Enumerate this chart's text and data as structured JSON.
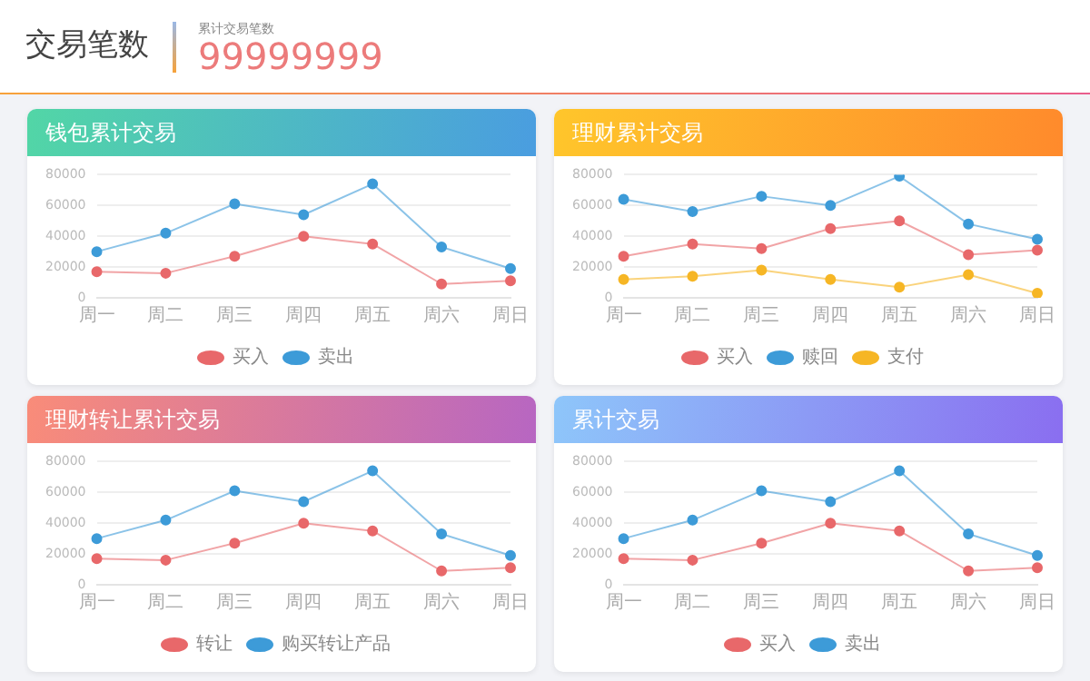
{
  "chart_data": [
    {
      "type": "other",
      "title": "交易笔数",
      "subtitle": "累计交易笔数",
      "annotations": [
        "99999999"
      ]
    },
    {
      "type": "line",
      "title": "钱包累计交易",
      "categories": [
        "周一",
        "周二",
        "周三",
        "周四",
        "周五",
        "周六",
        "周日"
      ],
      "ylim": [
        0,
        80000
      ],
      "yticks": [
        0,
        20000,
        40000,
        60000,
        80000
      ],
      "grid": "y",
      "legend": "bottom",
      "marker": "circle",
      "series": [
        {
          "name": "买入",
          "color": "#e8686a",
          "values": [
            17000,
            16000,
            27000,
            40000,
            35000,
            9000,
            11000
          ]
        },
        {
          "name": "卖出",
          "color": "#3d9bd8",
          "values": [
            30000,
            42000,
            61000,
            54000,
            74000,
            33000,
            19000
          ]
        }
      ]
    },
    {
      "type": "line",
      "title": "理财累计交易",
      "categories": [
        "周一",
        "周二",
        "周三",
        "周四",
        "周五",
        "周六",
        "周日"
      ],
      "ylim": [
        0,
        80000
      ],
      "yticks": [
        0,
        20000,
        40000,
        60000,
        80000
      ],
      "grid": "y",
      "legend": "bottom",
      "marker": "circle",
      "series": [
        {
          "name": "买入",
          "color": "#e8686a",
          "values": [
            27000,
            35000,
            32000,
            45000,
            50000,
            28000,
            31000
          ]
        },
        {
          "name": "赎回",
          "color": "#3d9bd8",
          "values": [
            64000,
            56000,
            66000,
            60000,
            79000,
            48000,
            38000
          ]
        },
        {
          "name": "支付",
          "color": "#f6b625",
          "values": [
            12000,
            14000,
            18000,
            12000,
            7000,
            15000,
            3000
          ]
        }
      ]
    },
    {
      "type": "line",
      "title": "理财转让累计交易",
      "categories": [
        "周一",
        "周二",
        "周三",
        "周四",
        "周五",
        "周六",
        "周日"
      ],
      "ylim": [
        0,
        80000
      ],
      "yticks": [
        0,
        20000,
        40000,
        60000,
        80000
      ],
      "grid": "y",
      "legend": "bottom",
      "marker": "circle",
      "series": [
        {
          "name": "转让",
          "color": "#e8686a",
          "values": [
            17000,
            16000,
            27000,
            40000,
            35000,
            9000,
            11000
          ]
        },
        {
          "name": "购买转让产品",
          "color": "#3d9bd8",
          "values": [
            30000,
            42000,
            61000,
            54000,
            74000,
            33000,
            19000
          ]
        }
      ]
    },
    {
      "type": "line",
      "title": "累计交易",
      "categories": [
        "周一",
        "周二",
        "周三",
        "周四",
        "周五",
        "周六",
        "周日"
      ],
      "ylim": [
        0,
        80000
      ],
      "yticks": [
        0,
        20000,
        40000,
        60000,
        80000
      ],
      "grid": "y",
      "legend": "bottom",
      "marker": "circle",
      "series": [
        {
          "name": "买入",
          "color": "#e8686a",
          "values": [
            17000,
            16000,
            27000,
            40000,
            35000,
            9000,
            11000
          ]
        },
        {
          "name": "卖出",
          "color": "#3d9bd8",
          "values": [
            30000,
            42000,
            61000,
            54000,
            74000,
            33000,
            19000
          ]
        }
      ]
    }
  ]
}
